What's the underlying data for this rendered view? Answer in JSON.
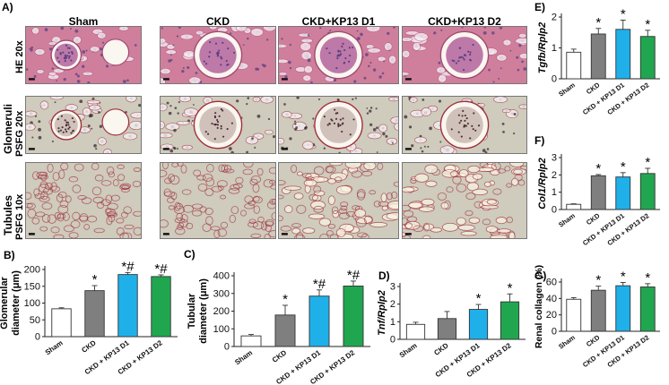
{
  "panel_labels": {
    "a": "A)",
    "b": "B)",
    "c": "C)",
    "d": "D)",
    "e": "E)",
    "f": "F)",
    "g": "G)"
  },
  "micrographs": {
    "columns": [
      "Sham",
      "CKD",
      "CKD+KP13 D1",
      "CKD+KP13 D2"
    ],
    "group_labels": {
      "glomeruli": "Glomeruli",
      "tubules": "Tubules"
    },
    "rows": [
      "HE 20x",
      "PSFG 20x",
      "PSFG 10x"
    ],
    "stains": {
      "he": "#cf7f9c",
      "psfg": "#cfcbbd",
      "collagen": "#a0303c",
      "nuclei": "#5a3f83"
    }
  },
  "colors": {
    "sham": "#ffffff",
    "ckd": "#7f7f7f",
    "kp13_d1": "#1fb0ea",
    "kp13_d2": "#21a650"
  },
  "chart_data": [
    {
      "id": "B",
      "type": "bar",
      "categories": [
        "Sham",
        "CKD",
        "CKD + KP13 D1",
        "CKD + KP13 D2"
      ],
      "values": [
        83,
        137,
        185,
        179
      ],
      "errors": [
        3,
        15,
        6,
        5
      ],
      "marks": [
        "",
        "*",
        "*#",
        "*#"
      ],
      "ylabel": "Glomerular diameter (μm)",
      "ylim": [
        0,
        200
      ],
      "yticks": [
        "0",
        "50",
        "100",
        "150",
        "200"
      ]
    },
    {
      "id": "C",
      "type": "bar",
      "categories": [
        "Sham",
        "CKD",
        "CKD + KP13 D1",
        "CKD + KP13 D2"
      ],
      "values": [
        60,
        178,
        285,
        342
      ],
      "errors": [
        8,
        55,
        35,
        28
      ],
      "marks": [
        "",
        "*",
        "*#",
        "*#"
      ],
      "ylabel": "Tubular diameter (μm)",
      "ylim": [
        0,
        400
      ],
      "yticks": [
        "0",
        "100",
        "200",
        "300",
        "400"
      ]
    },
    {
      "id": "D",
      "type": "bar",
      "categories": [
        "Sham",
        "CKD",
        "CKD + KP13 D1",
        "CKD + KP13 D2"
      ],
      "values": [
        0.85,
        1.18,
        1.7,
        2.13
      ],
      "errors": [
        0.12,
        0.4,
        0.28,
        0.45
      ],
      "marks": [
        "",
        "",
        "*",
        "*"
      ],
      "ylabel": "Tnf/Rplp2",
      "ylim": [
        0,
        3
      ],
      "yticks": [
        "0",
        "1",
        "2",
        "3"
      ]
    },
    {
      "id": "E",
      "type": "bar",
      "categories": [
        "Sham",
        "CKD",
        "CKD + KP13 D1",
        "CKD + KP13 D2"
      ],
      "values": [
        0.86,
        1.45,
        1.6,
        1.37
      ],
      "errors": [
        0.1,
        0.18,
        0.3,
        0.2
      ],
      "marks": [
        "",
        "*",
        "*",
        "*"
      ],
      "ylabel": "Tgfb/Rplp2",
      "ylim": [
        0,
        2
      ],
      "yticks": [
        "0",
        "1",
        "2"
      ]
    },
    {
      "id": "F",
      "type": "bar",
      "categories": [
        "Sham",
        "CKD",
        "CKD + KP13 D1",
        "CKD + KP13 D2"
      ],
      "values": [
        0.3,
        1.95,
        1.88,
        2.08
      ],
      "errors": [
        0.03,
        0.07,
        0.25,
        0.3
      ],
      "marks": [
        "",
        "*",
        "*",
        "*"
      ],
      "ylabel": "Col1/Rplp2",
      "ylim": [
        0,
        3
      ],
      "yticks": [
        "0",
        "1",
        "2",
        "3"
      ]
    },
    {
      "id": "G",
      "type": "bar",
      "categories": [
        "Sham",
        "CKD",
        "CKD + KP13 D1",
        "CKD + KP13 D2"
      ],
      "values": [
        39,
        50,
        55.5,
        54
      ],
      "errors": [
        2,
        5,
        4,
        4
      ],
      "marks": [
        "",
        "*",
        "*",
        "*"
      ],
      "ylabel": "Renal collagen (%)",
      "ylim": [
        0,
        60
      ],
      "yticks": [
        "0",
        "20",
        "40",
        "60"
      ]
    }
  ]
}
